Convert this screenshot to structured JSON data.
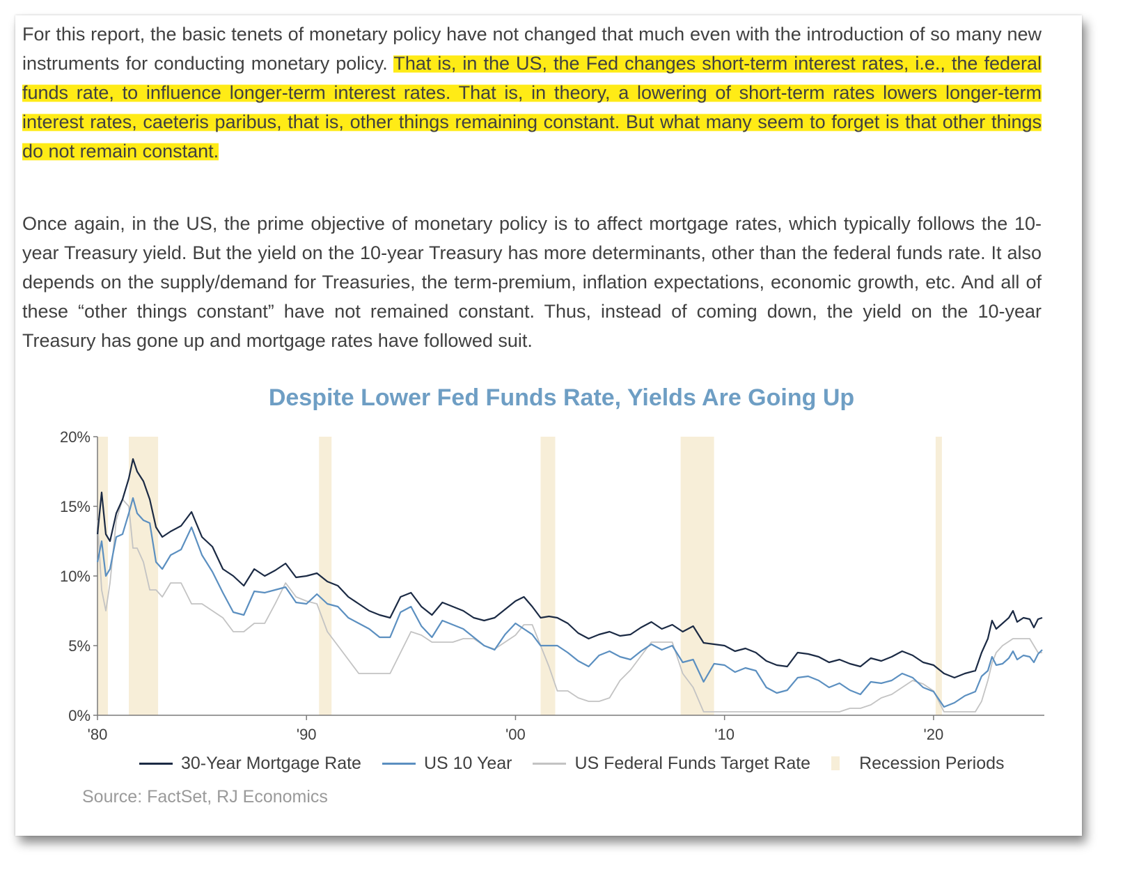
{
  "text": {
    "para1_plain": "For this report, the basic tenets of monetary policy have not changed that much even with the introduction of so many new instruments for conducting monetary policy. ",
    "para1_highlight": "That is, in the US, the Fed changes short-term interest rates, i.e., the federal funds rate, to influence longer-term interest rates. That is, in theory, a lowering of short-term rates lowers longer-term interest rates, caeteris paribus, that is, other things remaining constant. But what many seem to forget is that other things do not remain constant.",
    "para2": "Once again, in the US, the prime objective of monetary policy is to affect mortgage rates, which typically follows the 10-year Treasury yield. But the yield on the 10-year Treasury has more determinants, other than the federal funds rate. It also depends on the supply/demand for Treasuries, the term-premium, inflation expectations, economic growth, etc. And all of these “other things constant” have not remained constant. Thus, instead of coming down, the yield on the 10-year Treasury has gone up and mortgage rates have followed suit."
  },
  "colors": {
    "highlight": "#ffeb16",
    "mortgage": "#1b2a44",
    "treasury": "#5b8fc0",
    "fedfunds": "#c3c3c3",
    "recession": "#f7eed8",
    "title": "#6e9ec4"
  },
  "chart_data": {
    "type": "line",
    "title": "Despite Lower Fed Funds Rate, Yields Are Going Up",
    "source": "Source: FactSet, RJ Economics",
    "xlim": [
      1980,
      2025.3
    ],
    "ylim": [
      0,
      20
    ],
    "x_ticks": [
      1980,
      1990,
      2000,
      2010,
      2020
    ],
    "x_tick_labels": [
      "'80",
      "'90",
      "'00",
      "'10",
      "'20"
    ],
    "y_ticks": [
      0,
      5,
      10,
      15,
      20
    ],
    "y_tick_labels": [
      "0%",
      "5%",
      "10%",
      "15%",
      "20%"
    ],
    "grid": false,
    "legend_position": "bottom",
    "recessions": [
      [
        1980.0,
        1980.5
      ],
      [
        1981.5,
        1982.9
      ],
      [
        1990.6,
        1991.2
      ],
      [
        2001.2,
        2001.9
      ],
      [
        2007.9,
        2009.5
      ],
      [
        2020.1,
        2020.4
      ]
    ],
    "recession_label": "Recession Periods",
    "series": [
      {
        "name": "30-Year Mortgage Rate",
        "color": "#1b2a44",
        "x": [
          1980.0,
          1980.2,
          1980.4,
          1980.6,
          1980.9,
          1981.2,
          1981.5,
          1981.7,
          1981.9,
          1982.2,
          1982.5,
          1982.8,
          1983.1,
          1983.5,
          1984.0,
          1984.5,
          1985.0,
          1985.5,
          1986.0,
          1986.5,
          1987.0,
          1987.5,
          1988.0,
          1988.5,
          1989.0,
          1989.5,
          1990.0,
          1990.5,
          1991.0,
          1991.5,
          1992.0,
          1992.5,
          1993.0,
          1993.5,
          1994.0,
          1994.5,
          1995.0,
          1995.5,
          1996.0,
          1996.5,
          1997.0,
          1997.5,
          1998.0,
          1998.5,
          1999.0,
          1999.5,
          2000.0,
          2000.4,
          2000.8,
          2001.2,
          2001.6,
          2002.0,
          2002.5,
          2003.0,
          2003.5,
          2004.0,
          2004.5,
          2005.0,
          2005.5,
          2006.0,
          2006.5,
          2007.0,
          2007.5,
          2008.0,
          2008.5,
          2009.0,
          2009.5,
          2010.0,
          2010.5,
          2011.0,
          2011.5,
          2012.0,
          2012.5,
          2013.0,
          2013.5,
          2014.0,
          2014.5,
          2015.0,
          2015.5,
          2016.0,
          2016.5,
          2017.0,
          2017.5,
          2018.0,
          2018.5,
          2019.0,
          2019.5,
          2020.0,
          2020.5,
          2021.0,
          2021.5,
          2022.0,
          2022.3,
          2022.6,
          2022.8,
          2023.0,
          2023.3,
          2023.6,
          2023.8,
          2024.0,
          2024.3,
          2024.6,
          2024.8,
          2025.0,
          2025.2
        ],
        "y": [
          13.0,
          16.0,
          13.0,
          12.5,
          14.5,
          15.5,
          17.0,
          18.4,
          17.5,
          16.8,
          15.5,
          13.5,
          12.8,
          13.2,
          13.6,
          14.6,
          12.8,
          12.1,
          10.5,
          10.0,
          9.3,
          10.5,
          10.0,
          10.4,
          10.9,
          9.9,
          10.0,
          10.2,
          9.6,
          9.3,
          8.5,
          8.0,
          7.5,
          7.2,
          7.0,
          8.5,
          8.8,
          7.8,
          7.2,
          8.1,
          7.8,
          7.5,
          7.0,
          6.8,
          7.0,
          7.6,
          8.2,
          8.5,
          7.8,
          7.0,
          7.1,
          7.0,
          6.6,
          5.9,
          5.5,
          5.8,
          6.0,
          5.7,
          5.8,
          6.3,
          6.7,
          6.2,
          6.5,
          6.0,
          6.4,
          5.2,
          5.1,
          5.0,
          4.6,
          4.8,
          4.5,
          3.9,
          3.6,
          3.5,
          4.5,
          4.4,
          4.2,
          3.8,
          4.0,
          3.7,
          3.5,
          4.1,
          3.9,
          4.2,
          4.6,
          4.3,
          3.8,
          3.6,
          3.0,
          2.7,
          3.0,
          3.2,
          4.5,
          5.5,
          6.8,
          6.2,
          6.6,
          7.0,
          7.5,
          6.7,
          7.0,
          6.9,
          6.3,
          6.9,
          7.0
        ]
      },
      {
        "name": "US 10 Year",
        "color": "#5b8fc0",
        "x": [
          1980.0,
          1980.2,
          1980.4,
          1980.6,
          1980.9,
          1981.2,
          1981.5,
          1981.7,
          1981.9,
          1982.2,
          1982.5,
          1982.8,
          1983.1,
          1983.5,
          1984.0,
          1984.5,
          1985.0,
          1985.5,
          1986.0,
          1986.5,
          1987.0,
          1987.5,
          1988.0,
          1988.5,
          1989.0,
          1989.5,
          1990.0,
          1990.5,
          1991.0,
          1991.5,
          1992.0,
          1992.5,
          1993.0,
          1993.5,
          1994.0,
          1994.5,
          1995.0,
          1995.5,
          1996.0,
          1996.5,
          1997.0,
          1997.5,
          1998.0,
          1998.5,
          1999.0,
          1999.5,
          2000.0,
          2000.4,
          2000.8,
          2001.2,
          2001.6,
          2002.0,
          2002.5,
          2003.0,
          2003.5,
          2004.0,
          2004.5,
          2005.0,
          2005.5,
          2006.0,
          2006.5,
          2007.0,
          2007.5,
          2008.0,
          2008.5,
          2009.0,
          2009.5,
          2010.0,
          2010.5,
          2011.0,
          2011.5,
          2012.0,
          2012.5,
          2013.0,
          2013.5,
          2014.0,
          2014.5,
          2015.0,
          2015.5,
          2016.0,
          2016.5,
          2017.0,
          2017.5,
          2018.0,
          2018.5,
          2019.0,
          2019.5,
          2020.0,
          2020.5,
          2021.0,
          2021.5,
          2022.0,
          2022.3,
          2022.6,
          2022.8,
          2023.0,
          2023.3,
          2023.6,
          2023.8,
          2024.0,
          2024.3,
          2024.6,
          2024.8,
          2025.0,
          2025.2
        ],
        "y": [
          11.0,
          12.5,
          10.0,
          10.5,
          12.8,
          13.0,
          14.5,
          15.6,
          14.5,
          14.0,
          13.8,
          11.0,
          10.5,
          11.5,
          11.9,
          13.5,
          11.5,
          10.3,
          8.8,
          7.4,
          7.2,
          8.9,
          8.8,
          9.0,
          9.2,
          8.1,
          8.0,
          8.7,
          8.0,
          7.8,
          7.0,
          6.6,
          6.2,
          5.6,
          5.6,
          7.4,
          7.8,
          6.4,
          5.6,
          6.8,
          6.5,
          6.2,
          5.6,
          5.0,
          4.7,
          5.8,
          6.6,
          6.2,
          5.8,
          5.0,
          5.0,
          5.0,
          4.5,
          3.9,
          3.5,
          4.3,
          4.6,
          4.2,
          4.0,
          4.6,
          5.1,
          4.7,
          5.0,
          3.8,
          4.0,
          2.4,
          3.7,
          3.6,
          3.1,
          3.4,
          3.2,
          2.0,
          1.6,
          1.8,
          2.7,
          2.8,
          2.5,
          2.0,
          2.3,
          1.8,
          1.5,
          2.4,
          2.3,
          2.5,
          3.0,
          2.7,
          2.0,
          1.7,
          0.6,
          0.9,
          1.4,
          1.7,
          2.8,
          3.2,
          4.2,
          3.6,
          3.7,
          4.1,
          4.6,
          4.0,
          4.3,
          4.2,
          3.8,
          4.4,
          4.7
        ]
      },
      {
        "name": "US Federal Funds Target Rate",
        "color": "#c3c3c3",
        "x": [
          1980.0,
          1980.2,
          1980.4,
          1980.6,
          1980.9,
          1981.2,
          1981.5,
          1981.7,
          1981.9,
          1982.2,
          1982.5,
          1982.8,
          1983.1,
          1983.5,
          1984.0,
          1984.5,
          1985.0,
          1985.5,
          1986.0,
          1986.5,
          1987.0,
          1987.5,
          1988.0,
          1988.5,
          1989.0,
          1989.5,
          1990.0,
          1990.5,
          1991.0,
          1991.5,
          1992.0,
          1992.5,
          1993.0,
          1993.5,
          1994.0,
          1994.5,
          1995.0,
          1995.5,
          1996.0,
          1996.5,
          1997.0,
          1997.5,
          1998.0,
          1998.5,
          1999.0,
          1999.5,
          2000.0,
          2000.4,
          2000.8,
          2001.2,
          2001.6,
          2002.0,
          2002.5,
          2003.0,
          2003.5,
          2004.0,
          2004.5,
          2005.0,
          2005.5,
          2006.0,
          2006.5,
          2007.0,
          2007.5,
          2008.0,
          2008.5,
          2009.0,
          2009.5,
          2010.0,
          2010.5,
          2011.0,
          2011.5,
          2012.0,
          2012.5,
          2013.0,
          2013.5,
          2014.0,
          2014.5,
          2015.0,
          2015.5,
          2016.0,
          2016.5,
          2017.0,
          2017.5,
          2018.0,
          2018.5,
          2019.0,
          2019.5,
          2020.0,
          2020.5,
          2021.0,
          2021.5,
          2022.0,
          2022.3,
          2022.6,
          2022.8,
          2023.0,
          2023.3,
          2023.6,
          2023.8,
          2024.0,
          2024.3,
          2024.6,
          2024.8,
          2025.0,
          2025.2
        ],
        "y": [
          14.0,
          9.0,
          7.5,
          9.5,
          14.0,
          15.5,
          15.0,
          12.0,
          12.0,
          11.0,
          9.0,
          9.0,
          8.5,
          9.5,
          9.5,
          8.0,
          8.0,
          7.5,
          7.0,
          6.0,
          6.0,
          6.6,
          6.6,
          8.0,
          9.5,
          8.5,
          8.2,
          8.0,
          6.0,
          5.0,
          4.0,
          3.0,
          3.0,
          3.0,
          3.0,
          4.5,
          6.0,
          5.75,
          5.25,
          5.25,
          5.25,
          5.5,
          5.5,
          5.0,
          4.75,
          5.25,
          5.75,
          6.5,
          6.5,
          5.0,
          3.5,
          1.75,
          1.75,
          1.25,
          1.0,
          1.0,
          1.25,
          2.5,
          3.25,
          4.25,
          5.25,
          5.25,
          5.25,
          3.0,
          2.0,
          0.25,
          0.25,
          0.25,
          0.25,
          0.25,
          0.25,
          0.25,
          0.25,
          0.25,
          0.25,
          0.25,
          0.25,
          0.25,
          0.25,
          0.5,
          0.5,
          0.75,
          1.25,
          1.5,
          2.0,
          2.5,
          2.25,
          1.75,
          0.25,
          0.25,
          0.25,
          0.25,
          1.0,
          2.5,
          3.75,
          4.5,
          5.0,
          5.3,
          5.5,
          5.5,
          5.5,
          5.5,
          5.0,
          4.5,
          4.5
        ]
      }
    ]
  }
}
